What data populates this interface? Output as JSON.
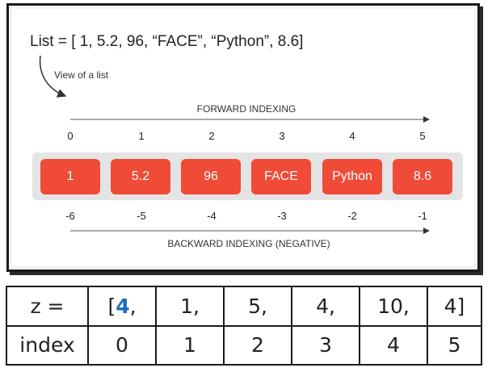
{
  "diagram": {
    "list_definition": "List = [ 1, 5.2, 96, “FACE”, “Python”, 8.6]",
    "view_label": "View of a list",
    "forward_title": "FORWARD INDEXING",
    "backward_title": "BACKWARD INDEXING (NEGATIVE)",
    "forward_indices": [
      "0",
      "1",
      "2",
      "3",
      "4",
      "5"
    ],
    "elements": [
      "1",
      "5.2",
      "96",
      "FACE",
      "Python",
      "8.6"
    ],
    "backward_indices": [
      "-6",
      "-5",
      "-4",
      "-3",
      "-2",
      "-1"
    ],
    "cell_color": "#ef4b37",
    "tray_color": "#e4e4e4"
  },
  "table": {
    "row1_label": "z =",
    "first_value_bracket": "[",
    "first_value_number": "4",
    "first_value_comma": ",",
    "row1_values": [
      "1,",
      "5,",
      "4,",
      "10,",
      "4]"
    ],
    "row2_label": "index",
    "row2_values": [
      "0",
      "1",
      "2",
      "3",
      "4",
      "5"
    ],
    "highlight_color": "#1b6dc1"
  }
}
